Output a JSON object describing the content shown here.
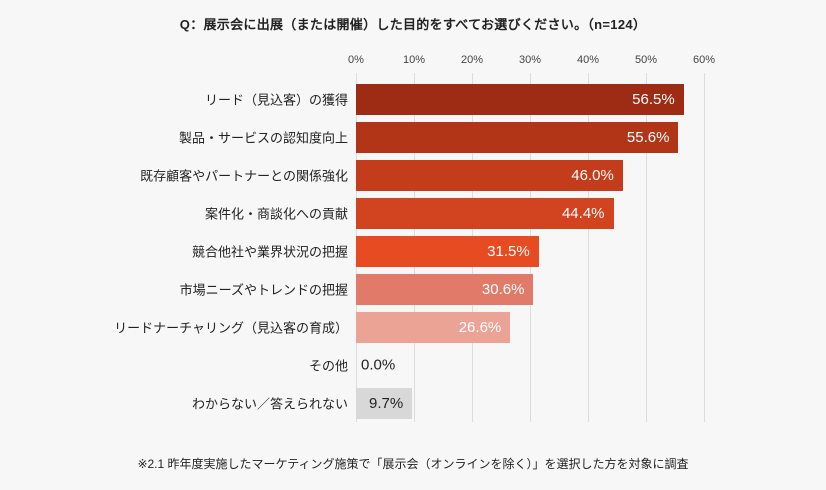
{
  "title": "Q：展示会に出展（または開催）した目的をすべてお選びください。（n=124）",
  "footnote": "※2.1 昨年度実施したマーケティング施策で「展示会（オンラインを除く）」を選択した方を対象に調査",
  "colors": {
    "background": "#f7f7f7",
    "gridline": "#dcdcdc",
    "text": "#222222"
  },
  "chart_data": {
    "type": "bar",
    "orientation": "horizontal",
    "title": "Q：展示会に出展（または開催）した目的をすべてお選びください。（n=124）",
    "n": 124,
    "categories": [
      "リード（見込客）の獲得",
      "製品・サービスの認知度向上",
      "既存顧客やパートナーとの関係強化",
      "案件化・商談化への貢献",
      "競合他社や業界状況の把握",
      "市場ニーズやトレンドの把握",
      "リードナーチャリング（見込客の育成）",
      "その他",
      "わからない／答えられない"
    ],
    "values": [
      56.5,
      55.6,
      46.0,
      44.4,
      31.5,
      30.6,
      26.6,
      0.0,
      9.7
    ],
    "value_labels": [
      "56.5%",
      "55.6%",
      "46.0%",
      "44.4%",
      "31.5%",
      "30.6%",
      "26.6%",
      "0.0%",
      "9.7%"
    ],
    "bar_colors": [
      "#9e2b13",
      "#b23517",
      "#c33c1c",
      "#d2431f",
      "#e64b22",
      "#e17a68",
      "#eba396",
      "transparent",
      "#d8d8d8"
    ],
    "value_label_colors": [
      "#ffffff",
      "#ffffff",
      "#ffffff",
      "#ffffff",
      "#ffffff",
      "#ffffff",
      "#ffffff",
      "#222222",
      "#222222"
    ],
    "value_label_position": [
      "inside",
      "inside",
      "inside",
      "inside",
      "inside",
      "inside",
      "inside",
      "outside",
      "inside"
    ],
    "axis": {
      "ticks": [
        "0%",
        "10%",
        "20%",
        "30%",
        "40%",
        "50%",
        "60%"
      ],
      "max": 60
    },
    "grid": true,
    "xlabel": "",
    "ylabel": ""
  }
}
